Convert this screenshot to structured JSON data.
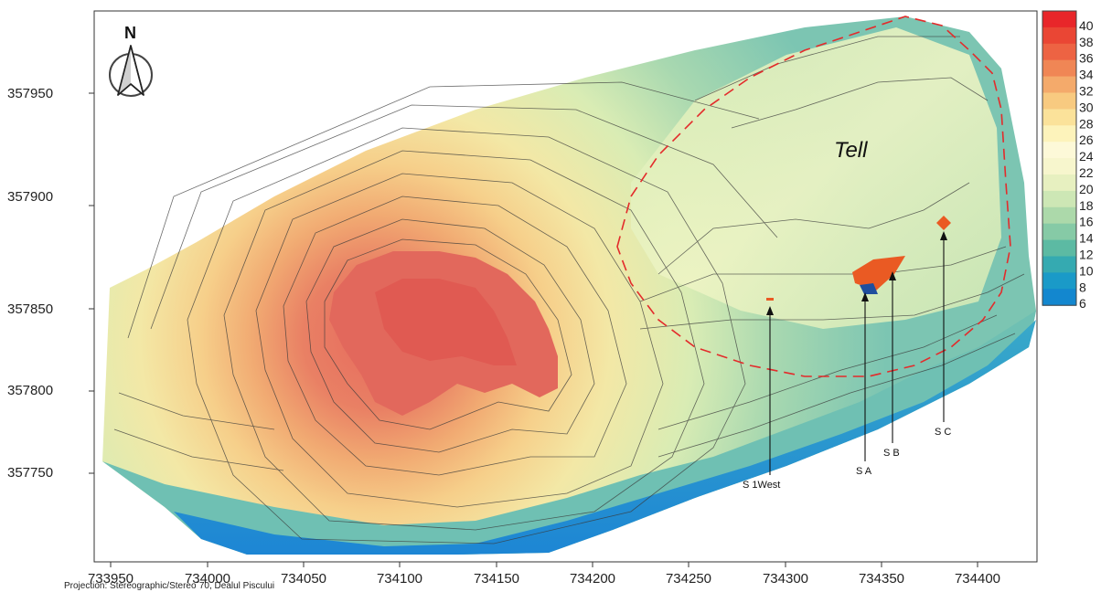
{
  "map": {
    "label_tell": "Tell",
    "north_letter": "N",
    "projection": "Projection: Stereographic/Stereo`70, Dealul Piscului",
    "x_ticks": [
      "733950",
      "734000",
      "734050",
      "734100",
      "734150",
      "734200",
      "734250",
      "734300",
      "734350",
      "734400"
    ],
    "y_ticks": [
      "357950",
      "357900",
      "357850",
      "357800",
      "357750"
    ],
    "sections": [
      {
        "label": "S 1West"
      },
      {
        "label": "S A"
      },
      {
        "label": "S B"
      },
      {
        "label": "S C"
      }
    ]
  },
  "legend": {
    "values": [
      "40",
      "38",
      "36",
      "34",
      "32",
      "30",
      "28",
      "26",
      "24",
      "22",
      "20",
      "18",
      "16",
      "14",
      "12",
      "10",
      "8",
      "6"
    ],
    "colors": [
      "#e8262a",
      "#ea4634",
      "#ed6343",
      "#f08655",
      "#f4aa6b",
      "#f8ca80",
      "#fbe29a",
      "#fdf3bb",
      "#fdf9d8",
      "#f7f6cd",
      "#e7f0c0",
      "#cde7b5",
      "#acd9aa",
      "#86caa6",
      "#5cbaa3",
      "#35aab1",
      "#1a9ac8",
      "#1387cf"
    ]
  },
  "colors": {
    "dashed_boundary": "#e32b2b",
    "trench": "#ea5a23",
    "trench_blue": "#1f4e9e"
  }
}
